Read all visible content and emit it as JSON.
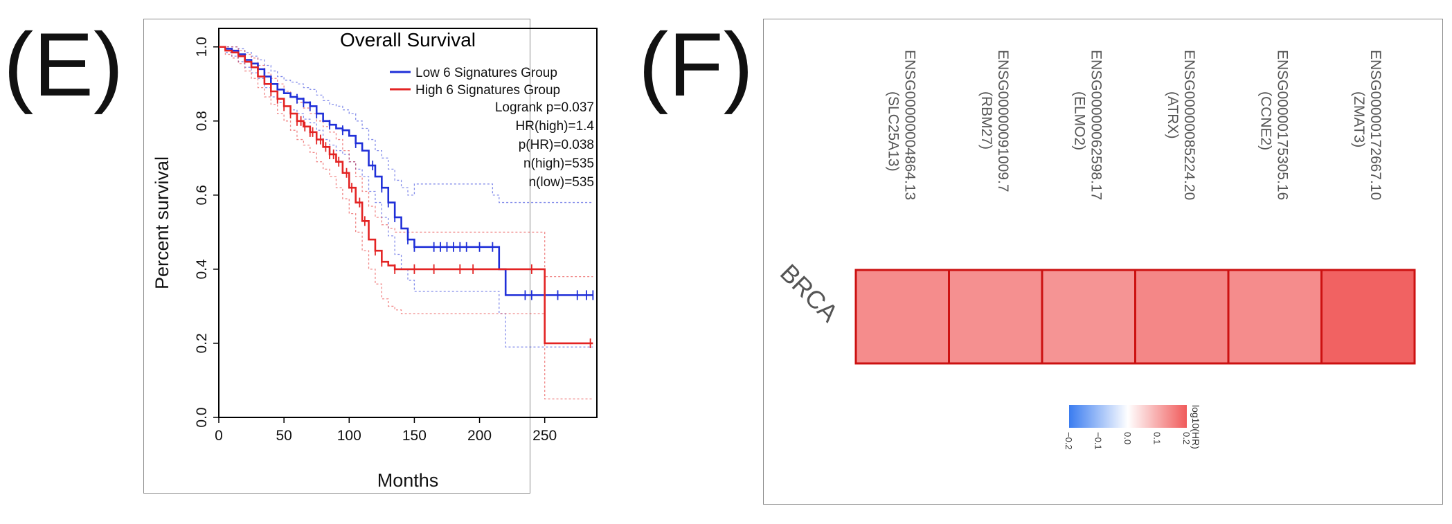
{
  "panels": {
    "e_label": "(E)",
    "f_label": "(F)"
  },
  "chart_data": [
    {
      "type": "line",
      "panel": "E",
      "title": "Overall Survival",
      "xlabel": "Months",
      "ylabel": "Percent survival",
      "xlim": [
        0,
        290
      ],
      "ylim": [
        0,
        1.05
      ],
      "xticks": [
        "0",
        "50",
        "100",
        "150",
        "200",
        "250"
      ],
      "yticks": [
        "0.0",
        "0.2",
        "0.4",
        "0.6",
        "0.8",
        "1.0"
      ],
      "legend": [
        "Low 6 Signatures Group",
        "High 6 Signatures Group"
      ],
      "legend_position": "top-right",
      "stats": [
        "Logrank p=0.037",
        "HR(high)=1.4",
        "p(HR)=0.038",
        "n(high)=535",
        "n(low)=535"
      ],
      "series": [
        {
          "name": "Low 6 Signatures Group",
          "color": "#1f2fd8",
          "x": [
            0,
            5,
            10,
            15,
            20,
            25,
            30,
            35,
            40,
            45,
            50,
            55,
            60,
            65,
            70,
            75,
            80,
            85,
            90,
            95,
            100,
            105,
            110,
            115,
            120,
            125,
            130,
            135,
            140,
            145,
            150,
            160,
            170,
            180,
            190,
            200,
            210,
            215,
            220,
            230,
            240,
            250,
            260,
            270,
            280,
            287
          ],
          "y": [
            1.0,
            0.995,
            0.99,
            0.98,
            0.965,
            0.955,
            0.94,
            0.92,
            0.9,
            0.885,
            0.875,
            0.865,
            0.86,
            0.85,
            0.84,
            0.82,
            0.8,
            0.79,
            0.78,
            0.775,
            0.76,
            0.74,
            0.72,
            0.68,
            0.65,
            0.62,
            0.58,
            0.54,
            0.51,
            0.48,
            0.46,
            0.46,
            0.46,
            0.46,
            0.46,
            0.46,
            0.46,
            0.4,
            0.33,
            0.33,
            0.33,
            0.33,
            0.33,
            0.33,
            0.33,
            0.33
          ],
          "upper_ci": [
            1.0,
            1.0,
            1.0,
            0.995,
            0.985,
            0.975,
            0.965,
            0.95,
            0.935,
            0.92,
            0.91,
            0.905,
            0.9,
            0.89,
            0.885,
            0.87,
            0.855,
            0.845,
            0.84,
            0.83,
            0.82,
            0.8,
            0.78,
            0.75,
            0.72,
            0.7,
            0.67,
            0.64,
            0.62,
            0.6,
            0.63,
            0.63,
            0.63,
            0.63,
            0.63,
            0.63,
            0.6,
            0.58,
            0.58,
            0.58,
            0.58,
            0.58,
            0.58,
            0.58,
            0.58,
            0.58
          ],
          "lower_ci": [
            1.0,
            0.985,
            0.975,
            0.96,
            0.945,
            0.93,
            0.915,
            0.89,
            0.865,
            0.85,
            0.84,
            0.83,
            0.82,
            0.805,
            0.795,
            0.775,
            0.75,
            0.735,
            0.72,
            0.71,
            0.69,
            0.67,
            0.65,
            0.61,
            0.58,
            0.54,
            0.49,
            0.44,
            0.4,
            0.37,
            0.34,
            0.34,
            0.34,
            0.34,
            0.34,
            0.34,
            0.34,
            0.28,
            0.19,
            0.19,
            0.19,
            0.19,
            0.19,
            0.19,
            0.19,
            0.19
          ],
          "censor_x": [
            60,
            65,
            70,
            75,
            85,
            95,
            105,
            118,
            125,
            130,
            135,
            145,
            150,
            165,
            170,
            175,
            180,
            185,
            190,
            200,
            210,
            235,
            240,
            250,
            260,
            275,
            282,
            287
          ]
        },
        {
          "name": "High 6 Signatures Group",
          "color": "#e32323",
          "x": [
            0,
            5,
            10,
            15,
            20,
            25,
            30,
            35,
            40,
            45,
            50,
            55,
            60,
            65,
            70,
            75,
            80,
            85,
            90,
            95,
            100,
            105,
            110,
            115,
            120,
            125,
            130,
            135,
            140,
            150,
            160,
            180,
            200,
            220,
            240,
            250,
            260,
            270,
            280,
            287
          ],
          "y": [
            1.0,
            0.99,
            0.985,
            0.975,
            0.96,
            0.945,
            0.92,
            0.9,
            0.88,
            0.86,
            0.84,
            0.82,
            0.8,
            0.785,
            0.77,
            0.75,
            0.73,
            0.71,
            0.69,
            0.66,
            0.62,
            0.58,
            0.53,
            0.48,
            0.45,
            0.42,
            0.41,
            0.4,
            0.4,
            0.4,
            0.4,
            0.4,
            0.4,
            0.4,
            0.4,
            0.2,
            0.2,
            0.2,
            0.2,
            0.2
          ],
          "upper_ci": [
            1.0,
            1.0,
            1.0,
            0.99,
            0.98,
            0.97,
            0.95,
            0.93,
            0.915,
            0.9,
            0.88,
            0.865,
            0.85,
            0.835,
            0.82,
            0.8,
            0.785,
            0.77,
            0.75,
            0.72,
            0.69,
            0.65,
            0.61,
            0.57,
            0.54,
            0.52,
            0.51,
            0.5,
            0.5,
            0.5,
            0.5,
            0.5,
            0.5,
            0.5,
            0.5,
            0.38,
            0.38,
            0.38,
            0.38,
            0.38
          ],
          "lower_ci": [
            1.0,
            0.98,
            0.97,
            0.955,
            0.935,
            0.915,
            0.89,
            0.865,
            0.845,
            0.82,
            0.8,
            0.775,
            0.75,
            0.735,
            0.715,
            0.69,
            0.67,
            0.65,
            0.62,
            0.59,
            0.55,
            0.5,
            0.45,
            0.4,
            0.36,
            0.32,
            0.3,
            0.29,
            0.28,
            0.28,
            0.28,
            0.28,
            0.28,
            0.28,
            0.28,
            0.05,
            0.05,
            0.05,
            0.05,
            0.05
          ],
          "censor_x": [
            40,
            45,
            50,
            55,
            60,
            63,
            66,
            70,
            72,
            75,
            78,
            82,
            85,
            88,
            92,
            98,
            102,
            108,
            112,
            120,
            125,
            135,
            150,
            165,
            185,
            195,
            240,
            285
          ]
        }
      ]
    },
    {
      "type": "heatmap",
      "panel": "F",
      "rows": [
        "BRCA"
      ],
      "columns": [
        {
          "id": "ENSG00000004864.13",
          "gene": "(SLC25A13)"
        },
        {
          "id": "ENSG00000091009.7",
          "gene": "(RBM27)"
        },
        {
          "id": "ENSG00000062598.17",
          "gene": "(ELMO2)"
        },
        {
          "id": "ENSG00000085224.20",
          "gene": "(ATRX)"
        },
        {
          "id": "ENSG00000175305.16",
          "gene": "(CCNE2)"
        },
        {
          "id": "ENSG00000172667.10",
          "gene": "(ZMAT3)"
        }
      ],
      "values": [
        [
          0.14,
          0.135,
          0.13,
          0.145,
          0.14,
          0.19
        ]
      ],
      "cell_border_color": "#cc1111",
      "colorbar": {
        "label": "log10(HR)",
        "range": [
          -0.2,
          0.2
        ],
        "ticks": [
          "−0.2",
          "−0.1",
          "0.0",
          "0.1",
          "0.2"
        ],
        "low_color": "#3a7cf0",
        "mid_color": "#ffffff",
        "high_color": "#f05a5a"
      }
    }
  ]
}
